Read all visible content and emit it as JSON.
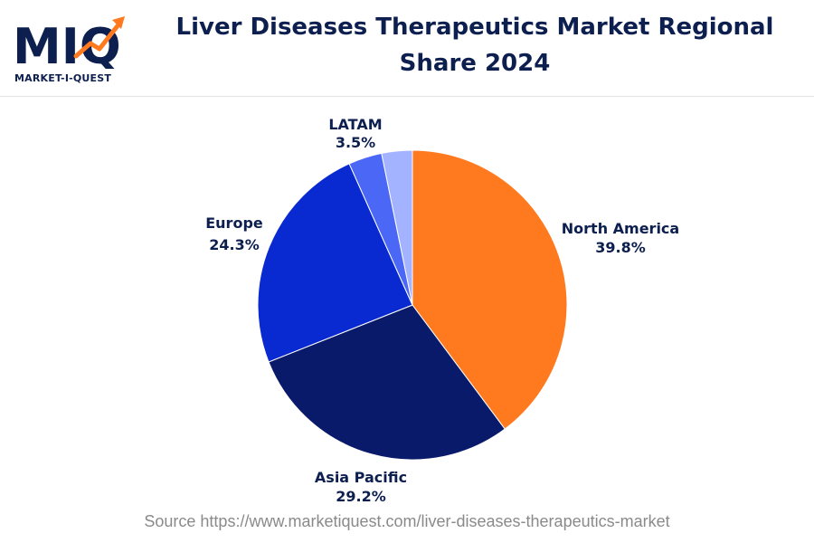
{
  "header": {
    "logo_text": "MARKET-I-QUEST",
    "logo_letters": "MIQ",
    "title": "Liver Diseases Therapeutics Market Regional Share 2024"
  },
  "footer": {
    "source": "Source https://www.marketiquest.com/liver-diseases-therapeutics-market"
  },
  "chart_data": {
    "type": "pie",
    "title": "Liver Diseases Therapeutics Market Regional Share 2024",
    "slices": [
      {
        "label": "North America",
        "value": 39.8,
        "value_label": "39.8%",
        "color": "#ff7a1f"
      },
      {
        "label": "Asia Pacific",
        "value": 29.2,
        "value_label": "29.2%",
        "color": "#0a1a6b"
      },
      {
        "label": "Europe",
        "value": 24.3,
        "value_label": "24.3%",
        "color": "#0a2ad1"
      },
      {
        "label": "LATAM",
        "value": 3.5,
        "value_label": "3.5%",
        "color": "#4a68f5"
      },
      {
        "label": "",
        "value": 3.2,
        "value_label": "",
        "color": "#a3b3ff"
      }
    ],
    "legend": "none",
    "units": "%"
  }
}
